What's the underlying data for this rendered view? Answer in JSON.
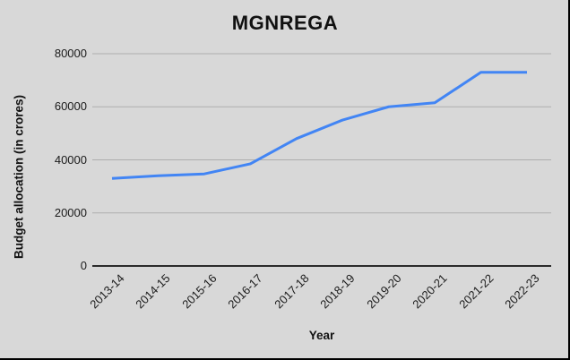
{
  "chart_data": {
    "type": "line",
    "title": "MGNREGA",
    "xlabel": "Year",
    "ylabel": "Budget allocation (in crores)",
    "categories": [
      "2013-14",
      "2014-15",
      "2015-16",
      "2016-17",
      "2017-18",
      "2018-19",
      "2019-20",
      "2020-21",
      "2021-22",
      "2022-23"
    ],
    "series": [
      {
        "values": [
          33000,
          34000,
          34699,
          38500,
          48000,
          55000,
          60000,
          61500,
          73000,
          73000
        ]
      }
    ],
    "ylim": [
      0,
      80000
    ],
    "yticks": [
      0,
      20000,
      40000,
      60000,
      80000
    ],
    "grid": true,
    "legend": "none",
    "colors": {
      "line": "#4285f4",
      "background": "#d8d8d8",
      "gridline": "#aeaeae",
      "axis_line": "#2b2b2b",
      "text": "#111111"
    }
  }
}
